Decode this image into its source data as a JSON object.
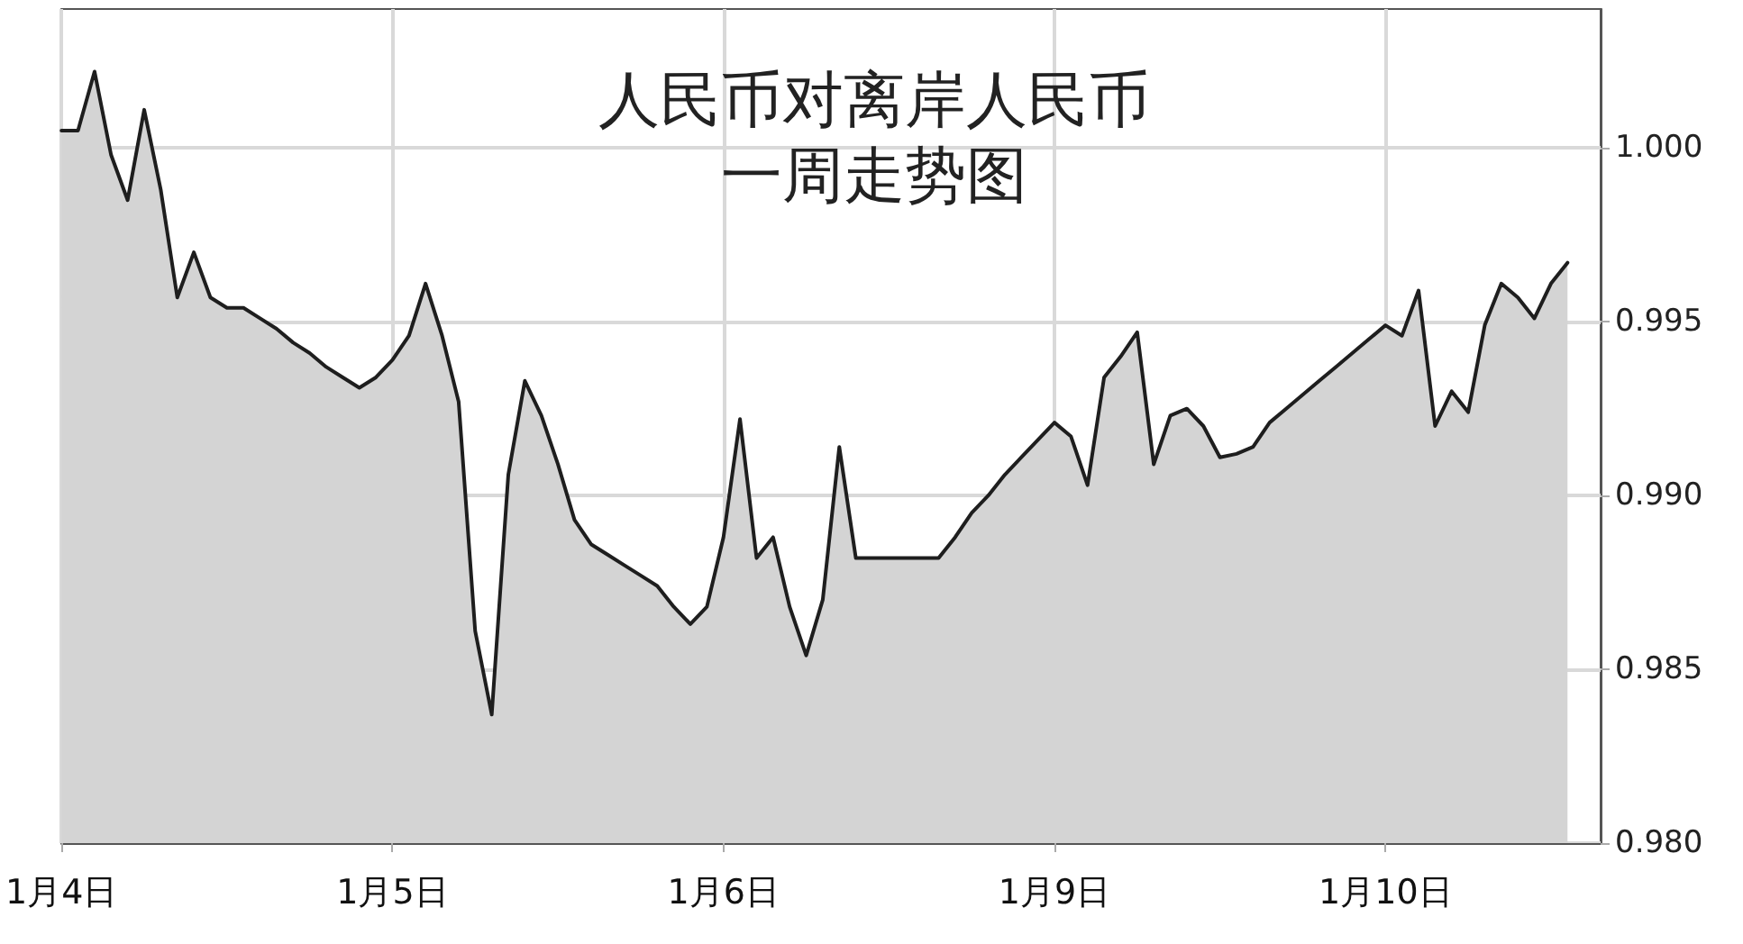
{
  "chart_data": {
    "type": "line",
    "title": "人民币对离岸人民币一周走势图",
    "categories": [
      "1月4日",
      null,
      null,
      null,
      null,
      null,
      null,
      null,
      null,
      null,
      null,
      null,
      null,
      null,
      null,
      null,
      null,
      null,
      null,
      null,
      "1月5日",
      null,
      null,
      null,
      null,
      null,
      null,
      null,
      null,
      null,
      null,
      null,
      null,
      null,
      null,
      null,
      null,
      null,
      null,
      null,
      "1月6日",
      null,
      null,
      null,
      null,
      null,
      null,
      null,
      null,
      null,
      null,
      null,
      null,
      null,
      null,
      null,
      null,
      null,
      null,
      null,
      "1月9日",
      null,
      null,
      null,
      null,
      null,
      null,
      null,
      null,
      null,
      null,
      null,
      null,
      null,
      null,
      null,
      null,
      null,
      null,
      null,
      "1月10日",
      null,
      null,
      null,
      null,
      null,
      null,
      null,
      null,
      null,
      null,
      null,
      null,
      null
    ],
    "series": [
      {
        "type": "area",
        "color": "#d4d4d4",
        "values": [
          1.0005,
          1.0005,
          1.0022,
          0.9998,
          0.9985,
          1.0011,
          0.9988,
          0.9957,
          0.997,
          0.9957,
          0.9954,
          0.9954,
          0.9951,
          0.9948,
          0.9944,
          0.9941,
          0.9937,
          0.9934,
          0.9931,
          0.9934,
          0.9939,
          0.9946,
          0.9961,
          0.9946,
          0.9927,
          0.9861,
          0.9837,
          0.9906,
          0.9933,
          0.9923,
          0.9909,
          0.9893,
          0.9886,
          0.9883,
          0.988,
          0.9877,
          0.9874,
          0.9868,
          0.9863,
          0.9868,
          0.9888,
          0.9922,
          0.9882,
          0.9888,
          0.9868,
          0.9854,
          0.987,
          0.9914,
          0.9882,
          0.9882,
          0.9882,
          0.9882,
          0.9882,
          0.9882,
          0.9888,
          0.9895,
          0.99,
          0.9906,
          0.9911,
          0.9916,
          0.9921,
          0.9917,
          0.9903,
          0.9934,
          0.994,
          0.9947,
          0.9909,
          0.9923,
          0.9925,
          0.992,
          0.9911,
          0.9912,
          0.9914,
          0.9921,
          0.9925,
          0.9929,
          0.9933,
          0.9937,
          0.9941,
          0.9945,
          0.9949,
          0.9946,
          0.9959,
          0.992,
          0.993,
          0.9924,
          0.9949,
          0.9961,
          0.9957,
          0.9951,
          0.9961,
          0.9967,
          null,
          null
        ]
      }
    ],
    "ylim": [
      0.98,
      1.004
    ],
    "yticks": [
      {
        "value": 0.98,
        "label": "0.980"
      },
      {
        "value": 0.985,
        "label": "0.985"
      },
      {
        "value": 0.99,
        "label": "0.990"
      },
      {
        "value": 0.995,
        "label": "0.995"
      },
      {
        "value": 1.0,
        "label": "1.000"
      }
    ],
    "grid": true
  }
}
